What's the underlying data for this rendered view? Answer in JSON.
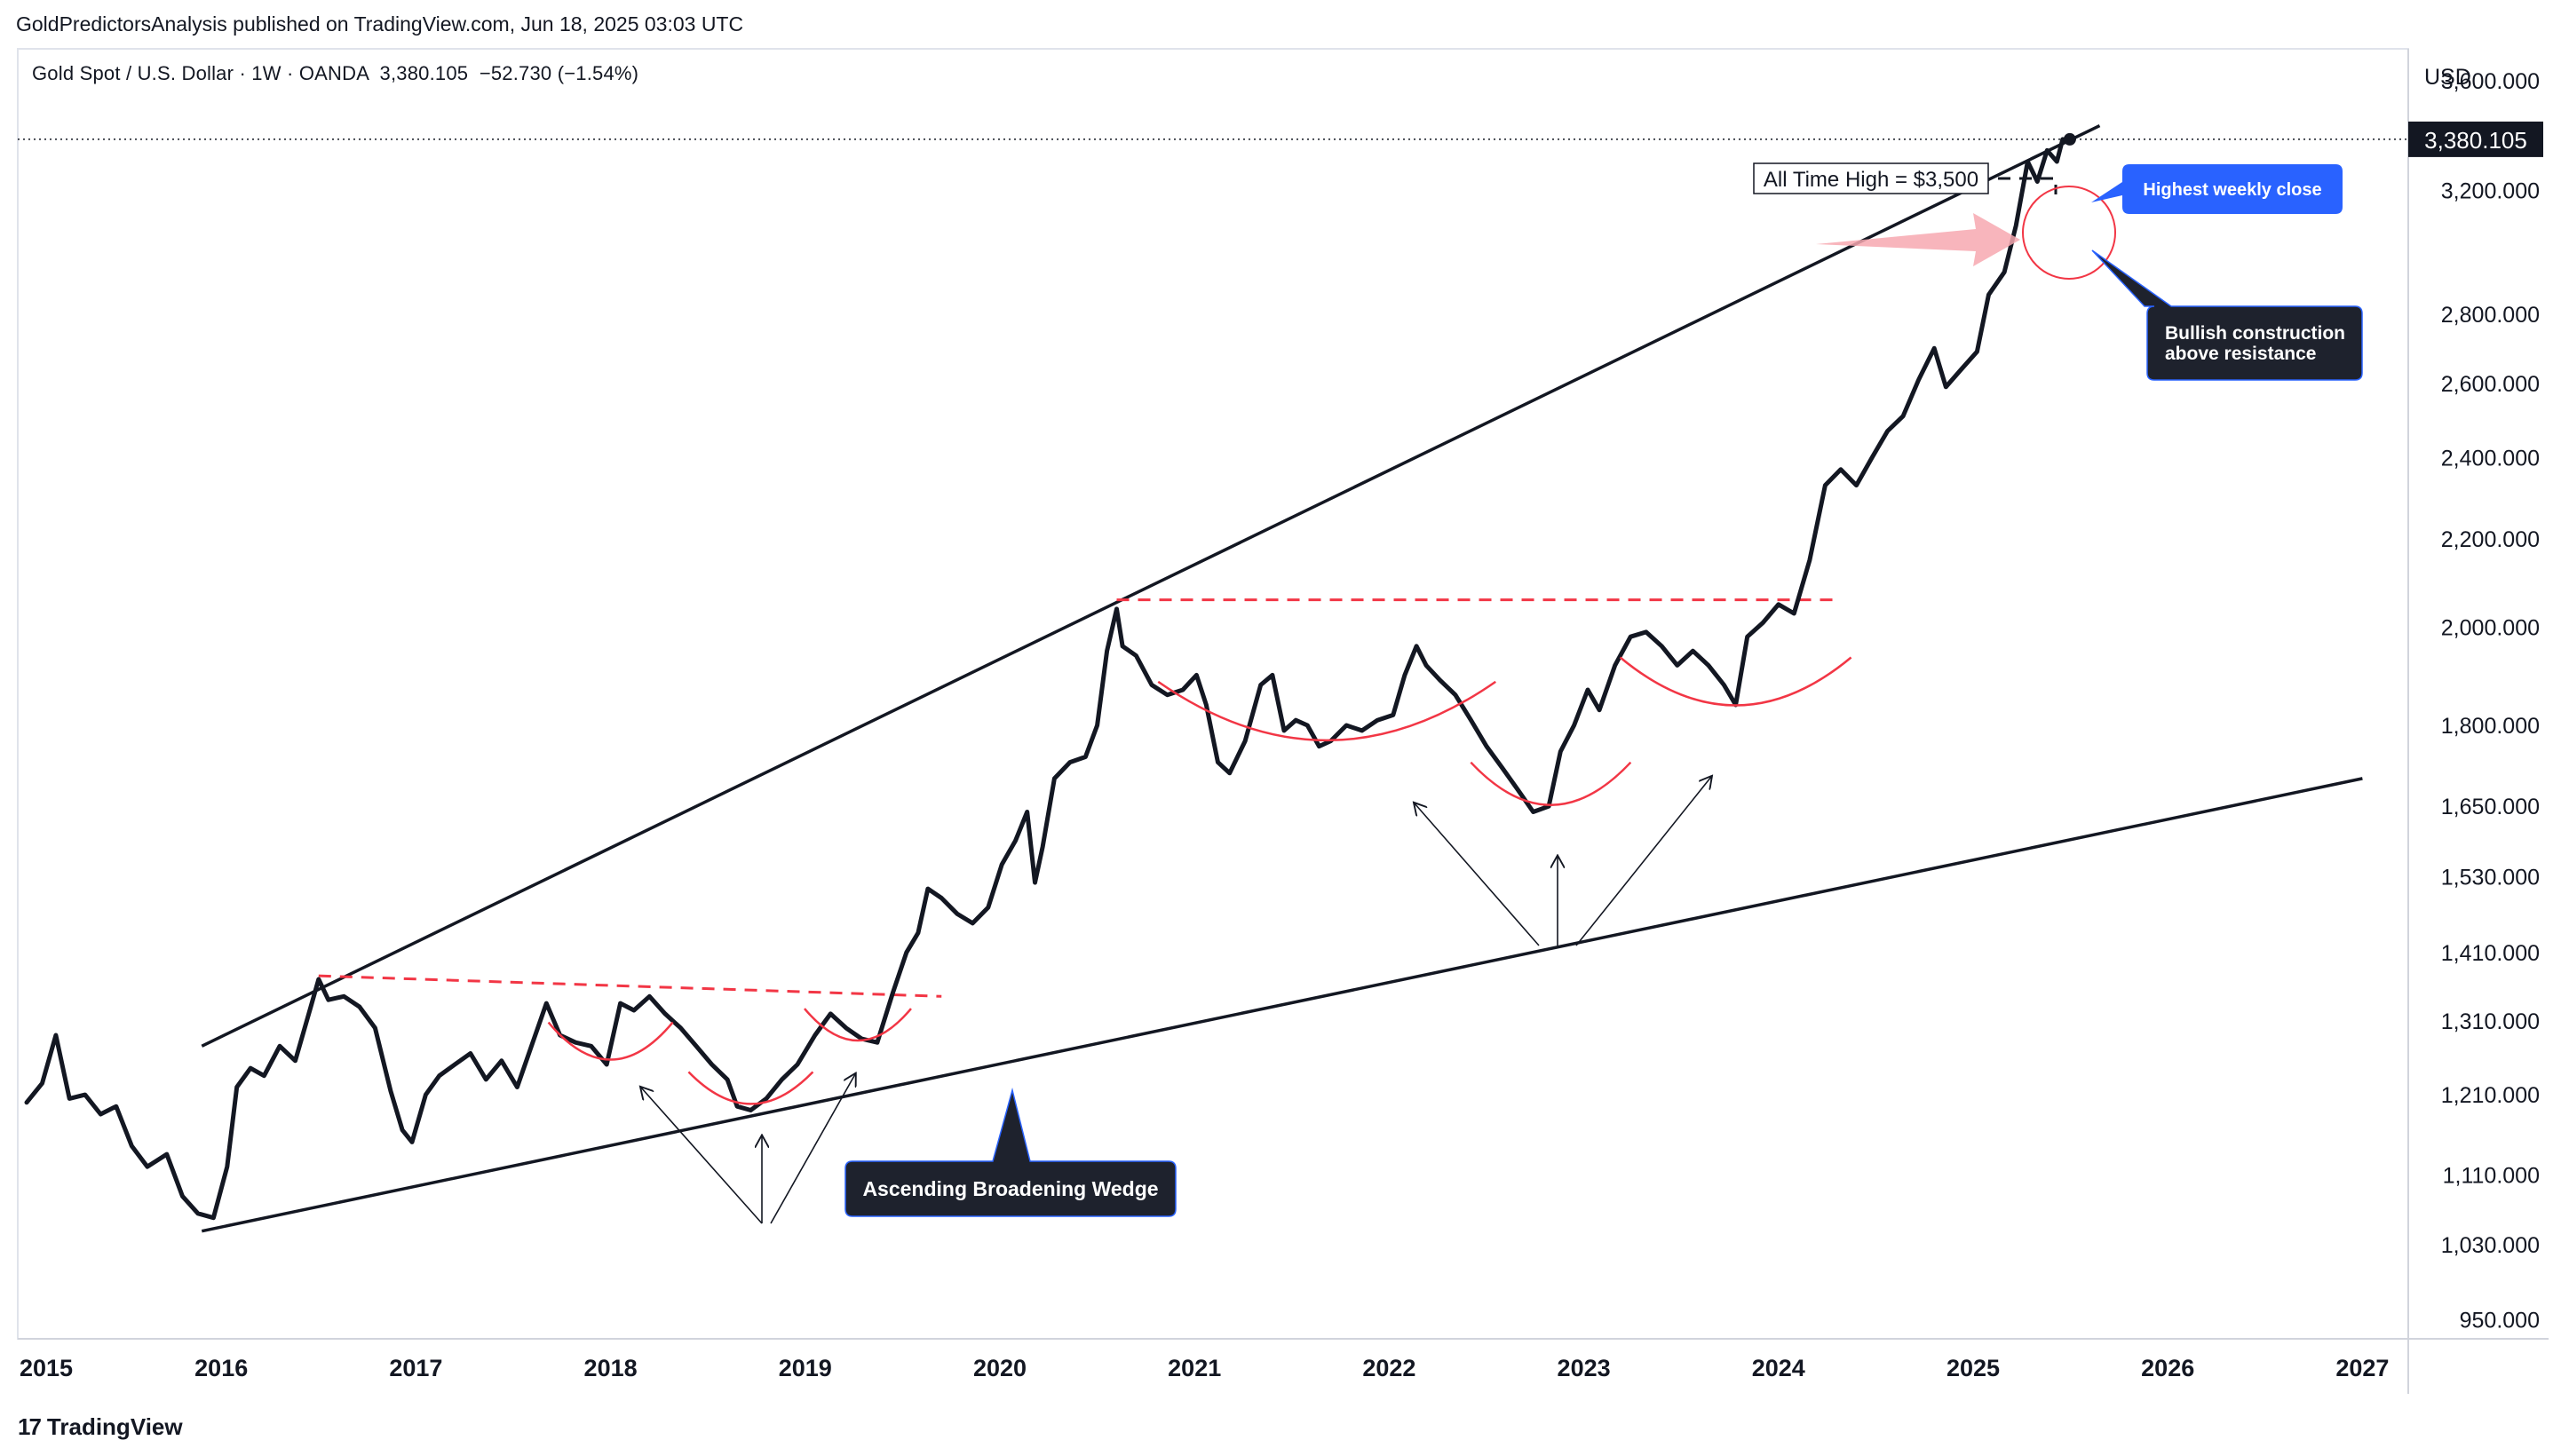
{
  "header": {
    "publisher": "GoldPredictorsAnalysis published on TradingView.com, Jun 18, 2025 03:03 UTC",
    "symbol": "Gold Spot / U.S. Dollar",
    "interval": "1W",
    "exchange": "OANDA",
    "last": "3,380.105",
    "change": "−52.730",
    "change_pct": "(−1.54%)",
    "separator": "·"
  },
  "footer": {
    "brand": "TradingView",
    "brand_logo": "17"
  },
  "chart_data": {
    "type": "line",
    "currency": "USD",
    "scale": "log",
    "ylim": [
      900,
      3900
    ],
    "xlim": [
      2015.0,
      2027.3
    ],
    "last_price": 3380.105,
    "last_price_label": "3,380.105",
    "price_ticks": [
      {
        "value": 950,
        "label": "950.000"
      },
      {
        "value": 1030,
        "label": "1,030.000"
      },
      {
        "value": 1110,
        "label": "1,110.000"
      },
      {
        "value": 1210,
        "label": "1,210.000"
      },
      {
        "value": 1310,
        "label": "1,310.000"
      },
      {
        "value": 1410,
        "label": "1,410.000"
      },
      {
        "value": 1530,
        "label": "1,530.000"
      },
      {
        "value": 1650,
        "label": "1,650.000"
      },
      {
        "value": 1800,
        "label": "1,800.000"
      },
      {
        "value": 2000,
        "label": "2,000.000"
      },
      {
        "value": 2200,
        "label": "2,200.000"
      },
      {
        "value": 2400,
        "label": "2,400.000"
      },
      {
        "value": 2600,
        "label": "2,600.000"
      },
      {
        "value": 2800,
        "label": "2,800.000"
      },
      {
        "value": 3200,
        "label": "3,200.000"
      },
      {
        "value": 3600,
        "label": "3,600.000"
      }
    ],
    "year_ticks": [
      {
        "value": 2015,
        "label": "2015"
      },
      {
        "value": 2016,
        "label": "2016"
      },
      {
        "value": 2017,
        "label": "2017"
      },
      {
        "value": 2018,
        "label": "2018"
      },
      {
        "value": 2019,
        "label": "2019"
      },
      {
        "value": 2020,
        "label": "2020"
      },
      {
        "value": 2021,
        "label": "2021"
      },
      {
        "value": 2022,
        "label": "2022"
      },
      {
        "value": 2023,
        "label": "2023"
      },
      {
        "value": 2024,
        "label": "2024"
      },
      {
        "value": 2025,
        "label": "2025"
      },
      {
        "value": 2026,
        "label": "2026"
      },
      {
        "value": 2027,
        "label": "2027"
      }
    ],
    "series": [
      {
        "points": [
          [
            2015.0,
            1200
          ],
          [
            2015.08,
            1225
          ],
          [
            2015.15,
            1290
          ],
          [
            2015.22,
            1205
          ],
          [
            2015.3,
            1210
          ],
          [
            2015.38,
            1185
          ],
          [
            2015.46,
            1195
          ],
          [
            2015.54,
            1145
          ],
          [
            2015.62,
            1120
          ],
          [
            2015.72,
            1135
          ],
          [
            2015.8,
            1085
          ],
          [
            2015.88,
            1065
          ],
          [
            2015.96,
            1060
          ],
          [
            2016.03,
            1120
          ],
          [
            2016.08,
            1220
          ],
          [
            2016.15,
            1245
          ],
          [
            2016.22,
            1235
          ],
          [
            2016.3,
            1275
          ],
          [
            2016.38,
            1255
          ],
          [
            2016.46,
            1330
          ],
          [
            2016.5,
            1370
          ],
          [
            2016.55,
            1340
          ],
          [
            2016.63,
            1345
          ],
          [
            2016.71,
            1330
          ],
          [
            2016.79,
            1300
          ],
          [
            2016.87,
            1215
          ],
          [
            2016.93,
            1165
          ],
          [
            2016.98,
            1150
          ],
          [
            2017.05,
            1210
          ],
          [
            2017.12,
            1235
          ],
          [
            2017.2,
            1250
          ],
          [
            2017.28,
            1265
          ],
          [
            2017.36,
            1230
          ],
          [
            2017.44,
            1255
          ],
          [
            2017.52,
            1220
          ],
          [
            2017.6,
            1280
          ],
          [
            2017.67,
            1335
          ],
          [
            2017.74,
            1290
          ],
          [
            2017.82,
            1280
          ],
          [
            2017.9,
            1275
          ],
          [
            2017.98,
            1250
          ],
          [
            2018.05,
            1335
          ],
          [
            2018.12,
            1325
          ],
          [
            2018.2,
            1345
          ],
          [
            2018.28,
            1320
          ],
          [
            2018.36,
            1300
          ],
          [
            2018.44,
            1275
          ],
          [
            2018.52,
            1250
          ],
          [
            2018.6,
            1230
          ],
          [
            2018.65,
            1195
          ],
          [
            2018.72,
            1190
          ],
          [
            2018.8,
            1205
          ],
          [
            2018.88,
            1230
          ],
          [
            2018.96,
            1250
          ],
          [
            2019.05,
            1290
          ],
          [
            2019.13,
            1320
          ],
          [
            2019.21,
            1300
          ],
          [
            2019.29,
            1285
          ],
          [
            2019.37,
            1280
          ],
          [
            2019.45,
            1350
          ],
          [
            2019.52,
            1410
          ],
          [
            2019.58,
            1440
          ],
          [
            2019.63,
            1510
          ],
          [
            2019.7,
            1495
          ],
          [
            2019.78,
            1470
          ],
          [
            2019.86,
            1455
          ],
          [
            2019.94,
            1480
          ],
          [
            2020.01,
            1550
          ],
          [
            2020.08,
            1590
          ],
          [
            2020.14,
            1640
          ],
          [
            2020.18,
            1520
          ],
          [
            2020.22,
            1580
          ],
          [
            2020.28,
            1700
          ],
          [
            2020.36,
            1730
          ],
          [
            2020.44,
            1740
          ],
          [
            2020.5,
            1800
          ],
          [
            2020.55,
            1950
          ],
          [
            2020.6,
            2040
          ],
          [
            2020.63,
            1960
          ],
          [
            2020.7,
            1940
          ],
          [
            2020.78,
            1880
          ],
          [
            2020.86,
            1860
          ],
          [
            2020.94,
            1870
          ],
          [
            2021.01,
            1900
          ],
          [
            2021.06,
            1840
          ],
          [
            2021.12,
            1730
          ],
          [
            2021.18,
            1710
          ],
          [
            2021.26,
            1770
          ],
          [
            2021.34,
            1880
          ],
          [
            2021.4,
            1900
          ],
          [
            2021.46,
            1790
          ],
          [
            2021.52,
            1810
          ],
          [
            2021.58,
            1800
          ],
          [
            2021.64,
            1760
          ],
          [
            2021.7,
            1770
          ],
          [
            2021.78,
            1800
          ],
          [
            2021.86,
            1790
          ],
          [
            2021.94,
            1810
          ],
          [
            2022.02,
            1820
          ],
          [
            2022.08,
            1900
          ],
          [
            2022.14,
            1960
          ],
          [
            2022.19,
            1920
          ],
          [
            2022.26,
            1890
          ],
          [
            2022.34,
            1860
          ],
          [
            2022.42,
            1810
          ],
          [
            2022.5,
            1760
          ],
          [
            2022.58,
            1720
          ],
          [
            2022.66,
            1680
          ],
          [
            2022.74,
            1640
          ],
          [
            2022.82,
            1650
          ],
          [
            2022.88,
            1750
          ],
          [
            2022.95,
            1800
          ],
          [
            2023.02,
            1870
          ],
          [
            2023.08,
            1830
          ],
          [
            2023.16,
            1920
          ],
          [
            2023.24,
            1980
          ],
          [
            2023.32,
            1990
          ],
          [
            2023.4,
            1960
          ],
          [
            2023.48,
            1920
          ],
          [
            2023.56,
            1950
          ],
          [
            2023.64,
            1920
          ],
          [
            2023.72,
            1880
          ],
          [
            2023.78,
            1840
          ],
          [
            2023.84,
            1980
          ],
          [
            2023.92,
            2010
          ],
          [
            2024.0,
            2050
          ],
          [
            2024.08,
            2030
          ],
          [
            2024.16,
            2150
          ],
          [
            2024.24,
            2330
          ],
          [
            2024.32,
            2370
          ],
          [
            2024.4,
            2330
          ],
          [
            2024.48,
            2400
          ],
          [
            2024.56,
            2470
          ],
          [
            2024.64,
            2510
          ],
          [
            2024.72,
            2610
          ],
          [
            2024.8,
            2700
          ],
          [
            2024.86,
            2590
          ],
          [
            2024.94,
            2640
          ],
          [
            2025.02,
            2690
          ],
          [
            2025.08,
            2860
          ],
          [
            2025.16,
            2930
          ],
          [
            2025.22,
            3080
          ],
          [
            2025.28,
            3300
          ],
          [
            2025.33,
            3230
          ],
          [
            2025.38,
            3340
          ],
          [
            2025.43,
            3300
          ],
          [
            2025.46,
            3380
          ]
        ]
      }
    ],
    "annotations": {
      "all_time_high": {
        "label": "All Time High = $3,500",
        "price": 3500,
        "x": 2025.3
      },
      "highest_weekly_close": {
        "label": "Highest weekly close"
      },
      "bullish_construction": {
        "line1": "Bullish construction",
        "line2": "above resistance"
      },
      "wedge_label": {
        "label": "Ascending Broadening Wedge"
      },
      "upper_trendline": [
        [
          2015.9,
          1275
        ],
        [
          2025.65,
          3430
        ]
      ],
      "lower_trendline": [
        [
          2015.9,
          1045
        ],
        [
          2027.0,
          1700
        ]
      ],
      "resistance_2016_2019": [
        [
          2016.5,
          1375
        ],
        [
          2019.7,
          1345
        ]
      ],
      "resistance_2020_2024": [
        [
          2020.6,
          2060
        ],
        [
          2024.3,
          2060
        ]
      ],
      "price_line_color": "#131722",
      "accent_red": "#f23645",
      "accent_blue": "#2962ff",
      "callout_dark": "#1e222d",
      "arrow_pink": "#f7a8b0"
    }
  }
}
